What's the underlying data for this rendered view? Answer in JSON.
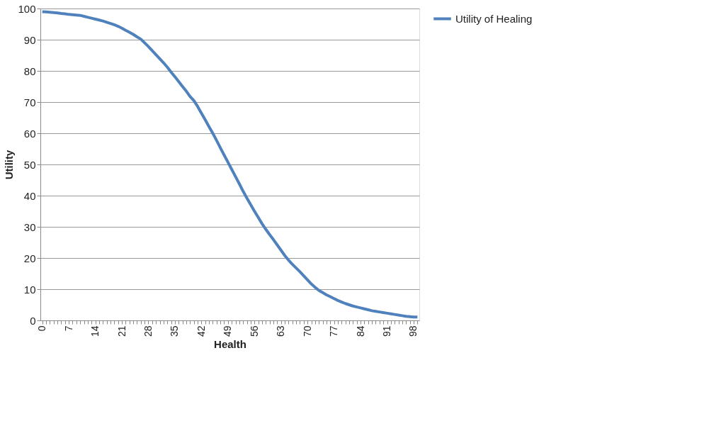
{
  "chart_data": {
    "type": "line",
    "xlabel": "Health",
    "ylabel": "Utility",
    "categories": [
      "0",
      null,
      null,
      null,
      null,
      null,
      null,
      "7",
      null,
      null,
      null,
      null,
      null,
      null,
      "14",
      null,
      null,
      null,
      null,
      null,
      null,
      "21",
      null,
      null,
      null,
      null,
      null,
      null,
      "28",
      null,
      null,
      null,
      null,
      null,
      null,
      "35",
      null,
      null,
      null,
      null,
      null,
      null,
      "42",
      null,
      null,
      null,
      null,
      null,
      null,
      "49",
      null,
      null,
      null,
      null,
      null,
      null,
      "56",
      null,
      null,
      null,
      null,
      null,
      null,
      "63",
      null,
      null,
      null,
      null,
      null,
      null,
      "70",
      null,
      null,
      null,
      null,
      null,
      null,
      "77",
      null,
      null,
      null,
      null,
      null,
      null,
      "84",
      null,
      null,
      null,
      null,
      null,
      null,
      "91",
      null,
      null,
      null,
      null,
      null,
      null,
      "98",
      null
    ],
    "series": [
      {
        "name": "Utility of Healing",
        "color": "#4f81bd",
        "values": [
          99.0,
          98.9,
          98.8,
          98.7,
          98.6,
          98.4,
          98.3,
          98.1,
          98.0,
          97.9,
          97.8,
          97.5,
          97.2,
          96.9,
          96.6,
          96.3,
          96.0,
          95.6,
          95.2,
          94.8,
          94.3,
          93.7,
          93.0,
          92.4,
          91.7,
          90.9,
          90.2,
          89.0,
          87.8,
          86.5,
          85.2,
          83.9,
          82.6,
          81.2,
          79.6,
          78.1,
          76.6,
          75.0,
          73.5,
          71.8,
          70.5,
          68.6,
          66.4,
          64.3,
          62.1,
          60.0,
          57.7,
          55.3,
          53.0,
          50.7,
          48.4,
          46.1,
          43.8,
          41.4,
          39.2,
          37.1,
          35.0,
          33.0,
          31.0,
          29.2,
          27.5,
          25.9,
          24.2,
          22.5,
          20.8,
          19.3,
          18.0,
          16.8,
          15.6,
          14.3,
          13.0,
          11.7,
          10.6,
          9.6,
          8.9,
          8.2,
          7.6,
          7.0,
          6.4,
          5.9,
          5.4,
          5.0,
          4.6,
          4.3,
          4.0,
          3.7,
          3.4,
          3.1,
          2.9,
          2.7,
          2.5,
          2.3,
          2.1,
          1.9,
          1.7,
          1.5,
          1.3,
          1.2,
          1.1,
          1.1
        ]
      }
    ],
    "ylim": [
      0,
      100
    ],
    "yticks": [
      0,
      10,
      20,
      30,
      40,
      50,
      60,
      70,
      80,
      90,
      100
    ],
    "grid": "y",
    "legend": "right"
  }
}
